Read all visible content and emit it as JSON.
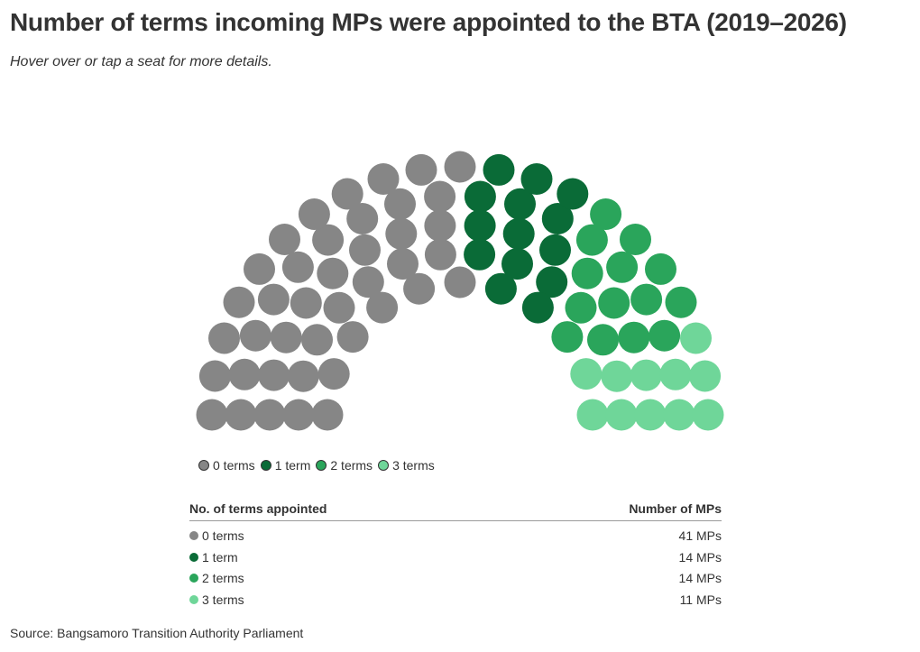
{
  "header": {
    "title": "Number of terms incoming MPs were appointed to the BTA (2019–2026)",
    "subtitle": "Hover over or tap a seat for more details."
  },
  "chart_data": {
    "type": "parliament",
    "categories": [
      "0 terms",
      "1 term",
      "2 terms",
      "3 terms"
    ],
    "values": [
      41,
      14,
      14,
      11
    ],
    "colors": [
      "#868686",
      "#0a6b37",
      "#2aa55b",
      "#6fd699"
    ],
    "total_seats": 80,
    "legend_position": "bottom-left"
  },
  "legend": {
    "items": [
      {
        "label": "0 terms",
        "color": "#868686"
      },
      {
        "label": "1 term",
        "color": "#0a6b37"
      },
      {
        "label": "2 terms",
        "color": "#2aa55b"
      },
      {
        "label": "3 terms",
        "color": "#6fd699"
      }
    ]
  },
  "table": {
    "col1_header": "No. of terms appointed",
    "col2_header": "Number of MPs",
    "rows": [
      {
        "label": "0 terms",
        "value": "41 MPs",
        "color": "#868686"
      },
      {
        "label": "1 term",
        "value": "14 MPs",
        "color": "#0a6b37"
      },
      {
        "label": "2 terms",
        "value": "14 MPs",
        "color": "#2aa55b"
      },
      {
        "label": "3 terms",
        "value": "11 MPs",
        "color": "#6fd699"
      }
    ]
  },
  "footer": {
    "source": "Source: Bangsamoro Transition Authority Parliament"
  }
}
